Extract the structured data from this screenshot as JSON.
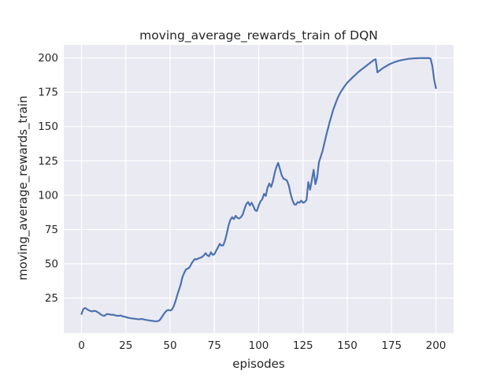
{
  "chart": {
    "title": "moving_average_rewards_train of DQN",
    "xlabel": "episodes",
    "ylabel": "moving_average_rewards_train",
    "colors": {
      "line": "#4c72b0",
      "plot_background": "#eaeaf2",
      "grid": "#ffffff",
      "text": "#262626",
      "figure_background": "#ffffff"
    }
  },
  "chart_data": {
    "type": "line",
    "title": "moving_average_rewards_train of DQN",
    "xlabel": "episodes",
    "ylabel": "moving_average_rewards_train",
    "x_ticks": [
      0,
      25,
      50,
      75,
      100,
      125,
      150,
      175,
      200
    ],
    "y_ticks": [
      25,
      50,
      75,
      100,
      125,
      150,
      175,
      200
    ],
    "xlim": [
      -10,
      210
    ],
    "ylim": [
      -0.5,
      209.5
    ],
    "grid": true,
    "legend": false,
    "series": [
      {
        "name": "moving_average_rewards_train",
        "x_start": 0,
        "x_step": 1,
        "x_end": 200,
        "values": [
          13.4,
          17.0,
          17.8,
          17.0,
          16.2,
          15.6,
          15.3,
          15.7,
          15.6,
          14.8,
          14.0,
          13.0,
          12.3,
          12.1,
          13.2,
          13.4,
          13.1,
          12.8,
          12.9,
          12.4,
          12.2,
          12.1,
          12.4,
          11.8,
          11.5,
          11.2,
          10.8,
          10.5,
          10.3,
          10.1,
          10.0,
          9.8,
          9.6,
          9.6,
          9.9,
          9.5,
          9.2,
          9.0,
          8.8,
          8.6,
          8.4,
          8.2,
          8.1,
          8.2,
          8.8,
          10.5,
          12.5,
          14.4,
          15.8,
          16.4,
          16.0,
          16.6,
          19.0,
          22.5,
          27.0,
          31.0,
          35.0,
          40.5,
          43.5,
          46.0,
          46.5,
          47.5,
          50.0,
          52.0,
          53.5,
          53.2,
          54.0,
          54.3,
          55.0,
          56.0,
          57.8,
          56.2,
          55.5,
          58.4,
          56.5,
          57.0,
          59.5,
          62.0,
          64.5,
          63.2,
          63.5,
          67.0,
          72.0,
          78.0,
          82.0,
          84.0,
          82.5,
          85.0,
          83.5,
          83.0,
          84.0,
          86.0,
          90.0,
          93.5,
          95.0,
          92.5,
          94.5,
          92.0,
          89.0,
          88.5,
          92.5,
          95.5,
          97.0,
          101.0,
          99.5,
          105.5,
          108.5,
          106.0,
          110.0,
          116.0,
          120.5,
          123.5,
          119.0,
          114.5,
          112.0,
          111.5,
          110.5,
          107.0,
          101.0,
          96.5,
          93.5,
          93.0,
          95.0,
          94.5,
          96.0,
          94.5,
          95.0,
          96.5,
          109.5,
          104.0,
          111.0,
          118.5,
          108.0,
          113.0,
          124.0,
          128.0,
          132.0,
          137.5,
          143.0,
          148.0,
          153.0,
          157.5,
          162.0,
          165.5,
          169.0,
          172.0,
          174.5,
          176.5,
          178.5,
          180.3,
          182.0,
          183.3,
          184.5,
          185.8,
          187.0,
          188.2,
          189.5,
          190.5,
          191.5,
          192.5,
          193.5,
          194.5,
          195.5,
          196.5,
          197.5,
          198.5,
          199.0,
          189.5,
          190.5,
          191.5,
          192.5,
          193.3,
          194.0,
          194.8,
          195.5,
          196.1,
          196.6,
          197.1,
          197.5,
          197.9,
          198.2,
          198.5,
          198.8,
          199.0,
          199.2,
          199.4,
          199.5,
          199.6,
          199.7,
          199.75,
          199.8,
          199.85,
          199.9,
          199.9,
          199.9,
          199.9,
          199.9,
          199.5,
          194.0,
          184.5,
          178.0
        ]
      }
    ]
  }
}
